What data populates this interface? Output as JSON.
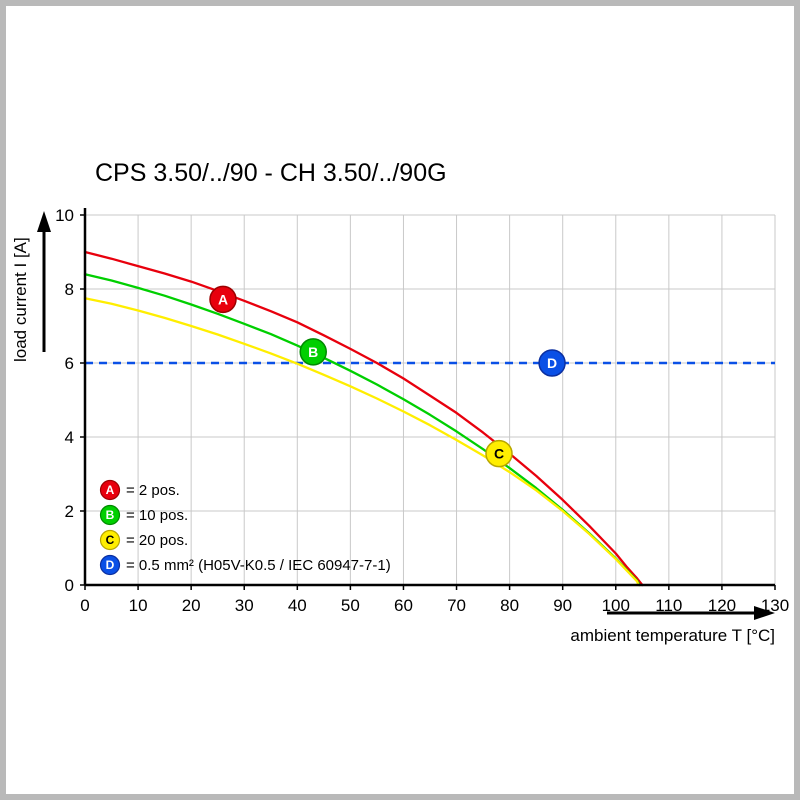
{
  "page": {
    "title": "CPS 3.50/../90 - CH 3.50/../90G"
  },
  "chart_data": {
    "type": "line",
    "title": "CPS 3.50/../90 - CH 3.50/../90G",
    "xlabel": "ambient temperature T [°C]",
    "ylabel": "load current I [A]",
    "xlim": [
      0,
      130
    ],
    "ylim": [
      0,
      10
    ],
    "xticks": [
      0,
      10,
      20,
      30,
      40,
      50,
      60,
      70,
      80,
      90,
      100,
      110,
      120,
      130
    ],
    "yticks": [
      0,
      2,
      4,
      6,
      8,
      10
    ],
    "grid": true,
    "reference_line": {
      "y": 6,
      "color": "#0a50e6",
      "style": "dashed",
      "key": "D"
    },
    "series": [
      {
        "id": "A",
        "name": "2 pos.",
        "color": "#e8000d",
        "edge": "#9c0000",
        "x": [
          0,
          5,
          10,
          15,
          20,
          25,
          30,
          35,
          40,
          45,
          50,
          55,
          60,
          65,
          70,
          75,
          80,
          85,
          90,
          95,
          100,
          102,
          104,
          105
        ],
        "y": [
          9.0,
          8.82,
          8.62,
          8.42,
          8.2,
          7.95,
          7.68,
          7.4,
          7.1,
          6.75,
          6.38,
          6.0,
          5.58,
          5.12,
          4.65,
          4.12,
          3.55,
          2.95,
          2.3,
          1.6,
          0.85,
          0.5,
          0.18,
          0
        ]
      },
      {
        "id": "B",
        "name": "10 pos.",
        "color": "#00cf00",
        "edge": "#008a00",
        "x": [
          0,
          5,
          10,
          15,
          20,
          25,
          30,
          35,
          40,
          45,
          50,
          55,
          60,
          65,
          70,
          75,
          80,
          85,
          90,
          95,
          100,
          102,
          104,
          104.5
        ],
        "y": [
          8.4,
          8.23,
          8.03,
          7.82,
          7.58,
          7.33,
          7.06,
          6.78,
          6.47,
          6.14,
          5.79,
          5.42,
          5.02,
          4.6,
          4.15,
          3.67,
          3.16,
          2.62,
          2.03,
          1.4,
          0.72,
          0.42,
          0.12,
          0
        ]
      },
      {
        "id": "C",
        "name": "20 pos.",
        "color": "#ffee00",
        "edge": "#b8a600",
        "x": [
          0,
          5,
          10,
          15,
          20,
          25,
          30,
          35,
          40,
          45,
          50,
          55,
          60,
          65,
          70,
          75,
          80,
          85,
          90,
          95,
          100,
          102,
          104,
          104.3
        ],
        "y": [
          7.75,
          7.6,
          7.42,
          7.22,
          7.0,
          6.77,
          6.52,
          6.26,
          5.98,
          5.68,
          5.37,
          5.04,
          4.69,
          4.32,
          3.92,
          3.5,
          3.05,
          2.56,
          2.0,
          1.38,
          0.7,
          0.4,
          0.1,
          0
        ]
      }
    ],
    "markers": [
      {
        "label": "A",
        "x": 26,
        "y": 7.72,
        "fill": "#e8000d",
        "edge": "#9c0000",
        "text_color": "#ffffff"
      },
      {
        "label": "B",
        "x": 43,
        "y": 6.3,
        "fill": "#00cf00",
        "edge": "#008a00",
        "text_color": "#ffffff"
      },
      {
        "label": "C",
        "x": 78,
        "y": 3.55,
        "fill": "#ffee00",
        "edge": "#b8a600",
        "text_color": "#000000"
      },
      {
        "label": "D",
        "x": 88,
        "y": 6.0,
        "fill": "#0a50e6",
        "edge": "#0b2fa0",
        "text_color": "#ffffff"
      }
    ],
    "legend": {
      "position": "lower-left",
      "items": [
        {
          "key": "A",
          "fill": "#e8000d",
          "edge": "#9c0000",
          "text_color": "#ffffff",
          "label": "= 2 pos."
        },
        {
          "key": "B",
          "fill": "#00cf00",
          "edge": "#008a00",
          "text_color": "#ffffff",
          "label": "= 10 pos."
        },
        {
          "key": "C",
          "fill": "#ffee00",
          "edge": "#b8a600",
          "text_color": "#000000",
          "label": "= 20 pos."
        },
        {
          "key": "D",
          "fill": "#0a50e6",
          "edge": "#0b2fa0",
          "text_color": "#ffffff",
          "label": "= 0.5 mm² (H05V-K0.5 / IEC 60947-7-1)"
        }
      ]
    }
  }
}
